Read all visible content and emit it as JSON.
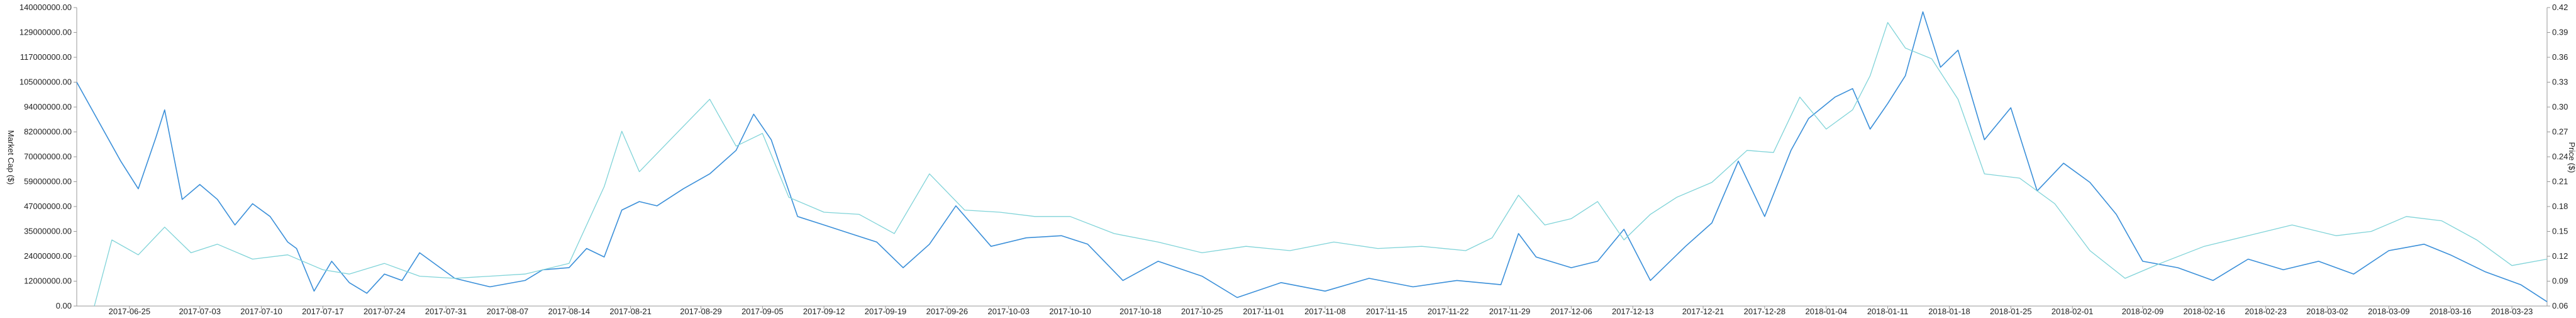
{
  "chart_data": {
    "type": "line",
    "title": "",
    "xlabel": "",
    "ylabel_left": "Market Cap ($)",
    "ylabel_right": "Price ($)",
    "grid": false,
    "legend": "none",
    "x_tick_labels": [
      "2017-06-25",
      "2017-07-03",
      "2017-07-10",
      "2017-07-17",
      "2017-07-24",
      "2017-07-31",
      "2017-08-07",
      "2017-08-14",
      "2017-08-21",
      "2017-08-29",
      "2017-09-05",
      "2017-09-12",
      "2017-09-19",
      "2017-09-26",
      "2017-10-03",
      "2017-10-10",
      "2017-10-18",
      "2017-10-25",
      "2017-11-01",
      "2017-11-08",
      "2017-11-15",
      "2017-11-22",
      "2017-11-29",
      "2017-12-06",
      "2017-12-13",
      "2017-12-21",
      "2017-12-28",
      "2018-01-04",
      "2018-01-11",
      "2018-01-18",
      "2018-01-25",
      "2018-02-01",
      "2018-02-09",
      "2018-02-16",
      "2018-02-23",
      "2018-03-02",
      "2018-03-09",
      "2018-03-16",
      "2018-03-23"
    ],
    "y_left_ticks": [
      "0.00",
      "12000000.00",
      "24000000.00",
      "35000000.00",
      "47000000.00",
      "59000000.00",
      "70000000.00",
      "82000000.00",
      "94000000.00",
      "105000000.00",
      "117000000.00",
      "129000000.00",
      "140000000.00"
    ],
    "y_right_ticks": [
      "0.06",
      "0.09",
      "0.12",
      "0.15",
      "0.18",
      "0.21",
      "0.24",
      "0.27",
      "0.30",
      "0.33",
      "0.36",
      "0.39",
      "0.42"
    ],
    "ylim_left": [
      0,
      140000000
    ],
    "ylim_right": [
      0.06,
      0.42
    ],
    "colors": {
      "market_cap": "#3a8fd9",
      "price": "#7fd3d8"
    },
    "series": [
      {
        "axis": "left",
        "color": "#3a8fd9",
        "x": [
          "2017-06-19",
          "2017-06-24",
          "2017-06-26",
          "2017-06-28",
          "2017-06-29",
          "2017-07-01",
          "2017-07-03",
          "2017-07-05",
          "2017-07-07",
          "2017-07-09",
          "2017-07-11",
          "2017-07-13",
          "2017-07-14",
          "2017-07-16",
          "2017-07-18",
          "2017-07-20",
          "2017-07-22",
          "2017-07-24",
          "2017-07-26",
          "2017-07-28",
          "2017-08-01",
          "2017-08-05",
          "2017-08-09",
          "2017-08-11",
          "2017-08-14",
          "2017-08-16",
          "2017-08-18",
          "2017-08-20",
          "2017-08-22",
          "2017-08-24",
          "2017-08-27",
          "2017-08-30",
          "2017-09-02",
          "2017-09-04",
          "2017-09-06",
          "2017-09-09",
          "2017-09-12",
          "2017-09-15",
          "2017-09-18",
          "2017-09-21",
          "2017-09-24",
          "2017-09-27",
          "2017-10-01",
          "2017-10-05",
          "2017-10-09",
          "2017-10-12",
          "2017-10-16",
          "2017-10-20",
          "2017-10-25",
          "2017-10-29",
          "2017-11-03",
          "2017-11-08",
          "2017-11-13",
          "2017-11-18",
          "2017-11-23",
          "2017-11-28",
          "2017-11-30",
          "2017-12-02",
          "2017-12-06",
          "2017-12-09",
          "2017-12-12",
          "2017-12-15",
          "2017-12-19",
          "2017-12-22",
          "2017-12-25",
          "2017-12-28",
          "2017-12-31",
          "2018-01-02",
          "2018-01-05",
          "2018-01-07",
          "2018-01-09",
          "2018-01-11",
          "2018-01-13",
          "2018-01-15",
          "2018-01-17",
          "2018-01-19",
          "2018-01-22",
          "2018-01-25",
          "2018-01-28",
          "2018-01-31",
          "2018-02-03",
          "2018-02-06",
          "2018-02-09",
          "2018-02-13",
          "2018-02-17",
          "2018-02-21",
          "2018-02-25",
          "2018-03-01",
          "2018-03-05",
          "2018-03-09",
          "2018-03-13",
          "2018-03-16",
          "2018-03-20",
          "2018-03-24",
          "2018-03-27"
        ],
        "values": [
          105000000,
          68000000,
          55000000,
          79000000,
          92000000,
          50000000,
          57000000,
          50000000,
          38000000,
          48000000,
          42000000,
          30000000,
          27000000,
          7000000,
          21000000,
          11000000,
          6000000,
          15000000,
          12000000,
          25000000,
          13000000,
          9000000,
          12000000,
          17000000,
          18000000,
          27000000,
          23000000,
          45000000,
          49000000,
          47000000,
          55000000,
          62000000,
          73000000,
          90000000,
          78000000,
          42000000,
          38000000,
          34000000,
          30000000,
          18000000,
          29000000,
          47000000,
          28000000,
          32000000,
          33000000,
          29000000,
          12000000,
          21000000,
          14000000,
          4000000,
          11000000,
          7000000,
          13000000,
          9000000,
          12000000,
          10000000,
          34000000,
          23000000,
          18000000,
          21000000,
          36000000,
          12000000,
          28000000,
          39000000,
          68000000,
          42000000,
          73000000,
          88000000,
          98000000,
          102000000,
          83000000,
          95000000,
          108000000,
          138000000,
          112000000,
          120000000,
          78000000,
          93000000,
          54000000,
          67000000,
          58000000,
          43000000,
          21000000,
          18000000,
          12000000,
          22000000,
          17000000,
          21000000,
          15000000,
          26000000,
          29000000,
          24000000,
          16000000,
          10000000,
          2000000
        ]
      },
      {
        "axis": "left",
        "color": "#7fd3d8",
        "x": [
          "2017-06-21",
          "2017-06-23",
          "2017-06-26",
          "2017-06-29",
          "2017-07-02",
          "2017-07-05",
          "2017-07-09",
          "2017-07-13",
          "2017-07-17",
          "2017-07-20",
          "2017-07-24",
          "2017-07-28",
          "2017-08-01",
          "2017-08-05",
          "2017-08-09",
          "2017-08-14",
          "2017-08-18",
          "2017-08-20",
          "2017-08-22",
          "2017-08-26",
          "2017-08-30",
          "2017-09-02",
          "2017-09-05",
          "2017-09-08",
          "2017-09-12",
          "2017-09-16",
          "2017-09-20",
          "2017-09-24",
          "2017-09-28",
          "2017-10-02",
          "2017-10-06",
          "2017-10-10",
          "2017-10-15",
          "2017-10-20",
          "2017-10-25",
          "2017-10-30",
          "2017-11-04",
          "2017-11-09",
          "2017-11-14",
          "2017-11-19",
          "2017-11-24",
          "2017-11-27",
          "2017-11-30",
          "2017-12-03",
          "2017-12-06",
          "2017-12-09",
          "2017-12-12",
          "2017-12-15",
          "2017-12-18",
          "2017-12-22",
          "2017-12-26",
          "2017-12-29",
          "2018-01-01",
          "2018-01-04",
          "2018-01-07",
          "2018-01-09",
          "2018-01-11",
          "2018-01-13",
          "2018-01-16",
          "2018-01-19",
          "2018-01-22",
          "2018-01-26",
          "2018-01-30",
          "2018-02-03",
          "2018-02-07",
          "2018-02-11",
          "2018-02-16",
          "2018-02-21",
          "2018-02-26",
          "2018-03-03",
          "2018-03-07",
          "2018-03-11",
          "2018-03-15",
          "2018-03-19",
          "2018-03-23",
          "2018-03-27"
        ],
        "values": [
          0,
          31000000,
          24000000,
          37000000,
          25000000,
          29000000,
          22000000,
          24000000,
          17000000,
          15000000,
          20000000,
          14000000,
          13000000,
          14000000,
          15000000,
          20000000,
          56000000,
          82000000,
          63000000,
          80000000,
          97000000,
          75000000,
          81000000,
          51000000,
          44000000,
          43000000,
          34000000,
          62000000,
          45000000,
          44000000,
          42000000,
          42000000,
          34000000,
          30000000,
          25000000,
          28000000,
          26000000,
          30000000,
          27000000,
          28000000,
          26000000,
          32000000,
          52000000,
          38000000,
          41000000,
          49000000,
          31000000,
          43000000,
          51000000,
          58000000,
          73000000,
          72000000,
          98000000,
          83000000,
          92000000,
          108000000,
          133000000,
          121000000,
          116000000,
          97000000,
          62000000,
          60000000,
          48000000,
          26000000,
          13000000,
          20000000,
          28000000,
          33000000,
          38000000,
          33000000,
          35000000,
          42000000,
          40000000,
          31000000,
          19000000,
          22000000
        ]
      }
    ]
  }
}
